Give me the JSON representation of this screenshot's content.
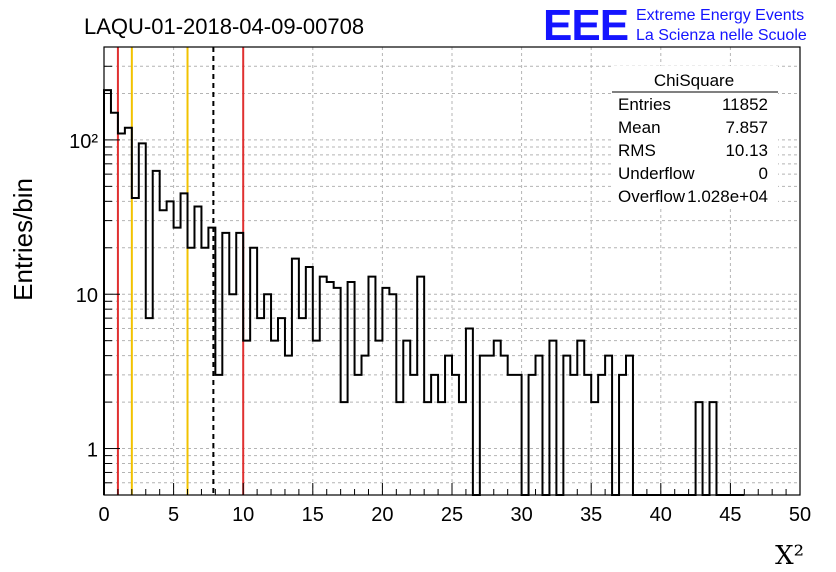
{
  "chart_data": {
    "type": "bar",
    "title": "LAQU-01-2018-04-09-00708",
    "xlabel": "X²",
    "ylabel": "Entries/bin",
    "xlim": [
      0,
      50
    ],
    "ylim": [
      0.5,
      400
    ],
    "yscale": "log",
    "grid": true,
    "bin_width": 0.5,
    "x_ticks": [
      0,
      5,
      10,
      15,
      20,
      25,
      30,
      35,
      40,
      45,
      50
    ],
    "x_tick_labels": [
      "0",
      "5",
      "10",
      "15",
      "20",
      "25",
      "30",
      "35",
      "40",
      "45",
      "50"
    ],
    "y_ticks": [
      1,
      10,
      100
    ],
    "y_tick_labels": [
      "1",
      "10",
      "10²"
    ],
    "values": [
      210,
      150,
      110,
      120,
      42,
      95,
      7,
      63,
      35,
      40,
      27,
      45,
      20,
      37,
      20,
      27,
      3,
      25,
      10,
      25,
      5,
      20,
      7,
      10,
      5,
      7,
      4,
      17,
      7,
      15,
      5,
      13,
      12,
      11,
      2,
      12,
      3,
      4,
      13,
      5,
      11,
      10,
      2,
      5,
      3,
      13,
      2,
      3,
      2,
      4,
      3,
      2,
      6,
      0,
      4,
      4,
      5,
      4,
      3,
      3,
      0,
      3,
      4,
      0,
      5,
      0,
      4,
      3,
      5,
      3,
      2,
      3,
      4,
      0,
      3,
      4,
      0,
      0,
      0,
      0,
      0,
      0,
      0,
      0,
      0,
      2,
      0,
      2,
      0,
      0,
      0,
      0
    ],
    "vlines": [
      {
        "x": 1,
        "color": "#e03030",
        "style": "solid"
      },
      {
        "x": 2,
        "color": "#f2c200",
        "style": "solid"
      },
      {
        "x": 6,
        "color": "#f2c200",
        "style": "solid"
      },
      {
        "x": 7.857,
        "color": "#000000",
        "style": "dashed"
      },
      {
        "x": 10,
        "color": "#e03030",
        "style": "solid"
      }
    ],
    "stats": {
      "name": "ChiSquare",
      "rows": [
        {
          "label": "Entries",
          "value": "11852"
        },
        {
          "label": "Mean",
          "value": "7.857"
        },
        {
          "label": "RMS",
          "value": "10.13"
        },
        {
          "label": "Underflow",
          "value": "0"
        },
        {
          "label": "Overflow",
          "value": "1.028e+04"
        }
      ]
    }
  },
  "logo": {
    "mark": "EEE",
    "line1": "Extreme Energy Events",
    "line2": "La Scienza nelle Scuole",
    "color": "#1414ff"
  }
}
